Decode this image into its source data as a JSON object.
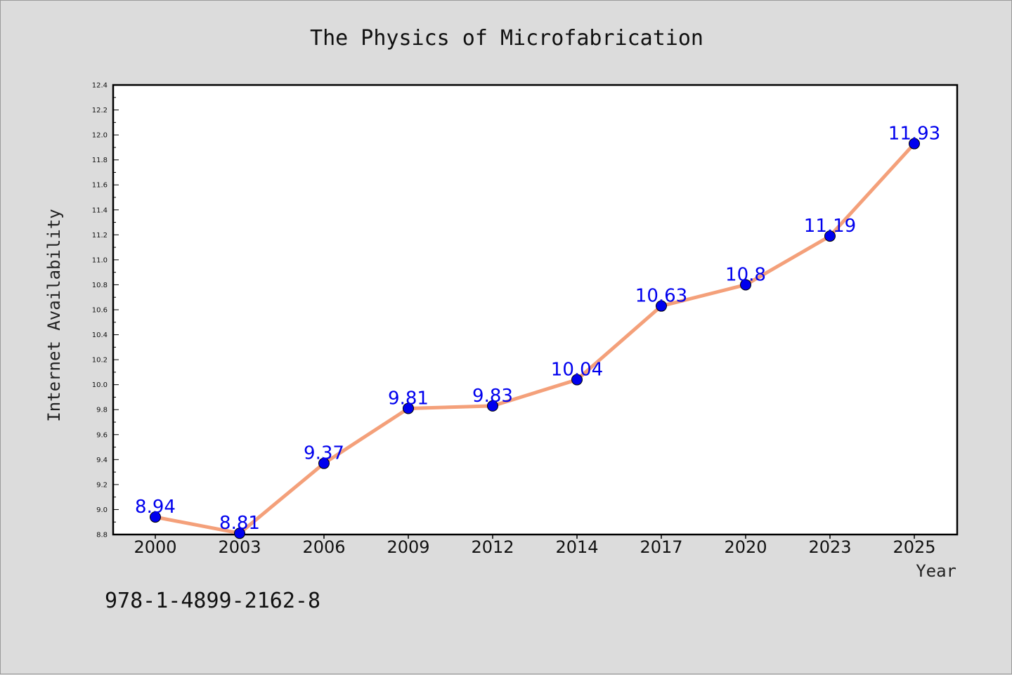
{
  "colors": {
    "background": "#dcdcdc",
    "plot_background": "#ffffff",
    "line": "#f4a07a",
    "marker": "#0000ee",
    "data_label": "#0000ee"
  },
  "footer": {
    "isbn": "978-1-4899-2162-8"
  },
  "chart_data": {
    "type": "line",
    "title": "The Physics of Microfabrication",
    "xlabel": "Year",
    "ylabel": "Internet Availability",
    "categories": [
      "2000",
      "2003",
      "2006",
      "2009",
      "2012",
      "2014",
      "2017",
      "2020",
      "2023",
      "2025"
    ],
    "series": [
      {
        "values": [
          8.94,
          8.81,
          9.37,
          9.81,
          9.83,
          10.04,
          10.63,
          10.8,
          11.19,
          11.93
        ]
      }
    ],
    "data_labels": [
      "8.94",
      "8.81",
      "9.37",
      "9.81",
      "9.83",
      "10.04",
      "10.63",
      "10.8",
      "11.19",
      "11.93"
    ],
    "ylim": [
      8.8,
      12.4
    ],
    "yticks": [
      "8.8",
      "9.0",
      "9.2",
      "9.4",
      "9.6",
      "9.8",
      "10.0",
      "10.2",
      "10.4",
      "10.6",
      "10.8",
      "11.0",
      "11.2",
      "11.4",
      "11.6",
      "11.8",
      "12.0",
      "12.2",
      "12.4"
    ],
    "grid": false,
    "legend": "none"
  }
}
